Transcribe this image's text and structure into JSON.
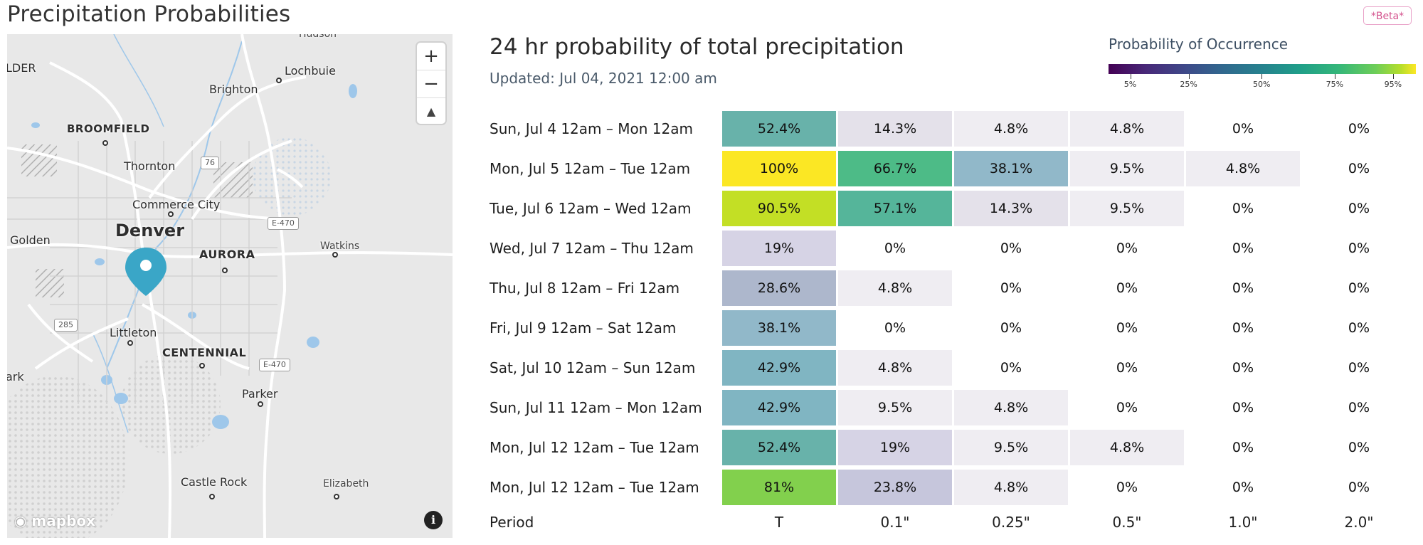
{
  "page": {
    "title": "Precipitation Probabilities",
    "beta_label": "*Beta*"
  },
  "map": {
    "zoom_in": "+",
    "zoom_out": "−",
    "compass": "▲",
    "attribution": "mapbox",
    "info": "i",
    "labels": {
      "hudson": "Hudson",
      "lder": "LDER",
      "lochbuie": "Lochbuie",
      "brighton": "Brighton",
      "broomfield": "BROOMFIELD",
      "thornton": "Thornton",
      "commerce_city": "Commerce City",
      "denver": "Denver",
      "golden": "Golden",
      "aurora": "AURORA",
      "watkins": "Watkins",
      "littleton": "Littleton",
      "centennial": "CENTENNIAL",
      "ark": "ark",
      "parker": "Parker",
      "castle_rock": "Castle Rock",
      "elizabeth": "Elizabeth"
    },
    "shields": {
      "i76": "76",
      "e470_top": "E-470",
      "e470_bottom": "E-470",
      "us285": "285"
    }
  },
  "chart_title": "24 hr probability of total precipitation",
  "updated": "Updated: Jul 04, 2021 12:00 am",
  "legend": {
    "title": "Probability of Occurrence",
    "ticks": [
      "5%",
      "25%",
      "50%",
      "75%",
      "95%"
    ]
  },
  "chart_data": {
    "type": "table",
    "columns": [
      "T",
      "0.1\"",
      "0.25\"",
      "0.5\"",
      "1.0\"",
      "2.0\""
    ],
    "period_label": "Period",
    "rows": [
      {
        "period": "Sun, Jul 4 12am – Mon 12am",
        "values": [
          "52.4%",
          "14.3%",
          "4.8%",
          "4.8%",
          "0%",
          "0%"
        ],
        "num": [
          52.4,
          14.3,
          4.8,
          4.8,
          0,
          0
        ]
      },
      {
        "period": "Mon, Jul 5 12am – Tue 12am",
        "values": [
          "100%",
          "66.7%",
          "38.1%",
          "9.5%",
          "4.8%",
          "0%"
        ],
        "num": [
          100,
          66.7,
          38.1,
          9.5,
          4.8,
          0
        ]
      },
      {
        "period": "Tue, Jul 6 12am – Wed 12am",
        "values": [
          "90.5%",
          "57.1%",
          "14.3%",
          "9.5%",
          "0%",
          "0%"
        ],
        "num": [
          90.5,
          57.1,
          14.3,
          9.5,
          0,
          0
        ]
      },
      {
        "period": "Wed, Jul 7 12am – Thu 12am",
        "values": [
          "19%",
          "0%",
          "0%",
          "0%",
          "0%",
          "0%"
        ],
        "num": [
          19,
          0,
          0,
          0,
          0,
          0
        ]
      },
      {
        "period": "Thu, Jul 8 12am – Fri 12am",
        "values": [
          "28.6%",
          "4.8%",
          "0%",
          "0%",
          "0%",
          "0%"
        ],
        "num": [
          28.6,
          4.8,
          0,
          0,
          0,
          0
        ]
      },
      {
        "period": "Fri, Jul 9 12am – Sat 12am",
        "values": [
          "38.1%",
          "0%",
          "0%",
          "0%",
          "0%",
          "0%"
        ],
        "num": [
          38.1,
          0,
          0,
          0,
          0,
          0
        ]
      },
      {
        "period": "Sat, Jul 10 12am – Sun 12am",
        "values": [
          "42.9%",
          "4.8%",
          "0%",
          "0%",
          "0%",
          "0%"
        ],
        "num": [
          42.9,
          4.8,
          0,
          0,
          0,
          0
        ]
      },
      {
        "period": "Sun, Jul 11 12am – Mon 12am",
        "values": [
          "42.9%",
          "9.5%",
          "4.8%",
          "0%",
          "0%",
          "0%"
        ],
        "num": [
          42.9,
          9.5,
          4.8,
          0,
          0,
          0
        ]
      },
      {
        "period": "Mon, Jul 12 12am – Tue 12am",
        "values": [
          "52.4%",
          "19%",
          "9.5%",
          "4.8%",
          "0%",
          "0%"
        ],
        "num": [
          52.4,
          19,
          9.5,
          4.8,
          0,
          0
        ]
      },
      {
        "period": "Mon, Jul 12 12am – Tue 12am",
        "values": [
          "81%",
          "23.8%",
          "4.8%",
          "0%",
          "0%",
          "0%"
        ],
        "num": [
          81,
          23.8,
          4.8,
          0,
          0,
          0
        ]
      }
    ],
    "colorscale": "viridis"
  }
}
